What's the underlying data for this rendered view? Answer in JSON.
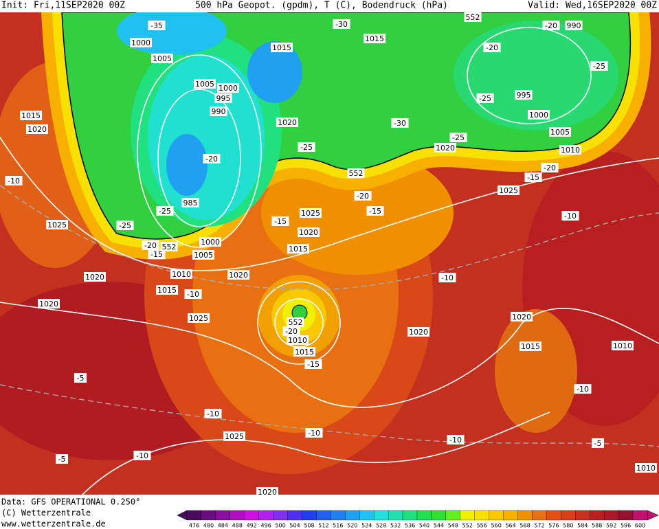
{
  "header": {
    "init": "Init: Fri,11SEP2020 00Z",
    "title": "500 hPa Geopot. (gpdm), T (C), Bodendruck (hPa)",
    "valid": "Valid: Wed,16SEP2020 00Z"
  },
  "footer": {
    "data": "Data: GFS OPERATIONAL 0.250°",
    "copyright": "(C) Wetterzentrale",
    "url": "www.wetterzentrale.de"
  },
  "map": {
    "labels": [
      "-35",
      "1000",
      "1005",
      "1015",
      "1005",
      "1000",
      "995",
      "990",
      "-30",
      "1015",
      "552",
      "-20",
      "990",
      "-20",
      "-25",
      "995",
      "-25",
      "1000",
      "1020",
      "-30",
      "1005",
      "1010",
      "1015",
      "1020",
      "1020",
      "-25",
      "-25",
      "-20",
      "552",
      "-20",
      "-15",
      "-10",
      "1025",
      "-20",
      "985",
      "-25",
      "1025",
      "-15",
      "-15",
      "-10",
      "-25",
      "1025",
      "1020",
      "1000",
      "-20",
      "552",
      "-15",
      "1005",
      "1015",
      "1010",
      "1020",
      "1020",
      "-10",
      "1015",
      "-10",
      "1020",
      "1025",
      "552",
      "1020",
      "-20",
      "1010",
      "1020",
      "1015",
      "1010",
      "1015",
      "-15",
      "-5",
      "-10",
      "-10",
      "1025",
      "-10",
      "-10",
      "-5",
      "-5",
      "-10",
      "1010",
      "1020"
    ],
    "colorbar": {
      "values": [
        476,
        480,
        484,
        488,
        492,
        496,
        500,
        504,
        508,
        512,
        516,
        520,
        524,
        528,
        532,
        536,
        540,
        544,
        548,
        552,
        556,
        560,
        564,
        568,
        572,
        576,
        580,
        584,
        588,
        592,
        596,
        600
      ],
      "colors": [
        "#4b0b5c",
        "#6a0d7e",
        "#8a0fa0",
        "#b00fc0",
        "#d010e0",
        "#b020f0",
        "#8030f0",
        "#5030f0",
        "#2040f0",
        "#2060f0",
        "#2080f0",
        "#20a0f0",
        "#20c0f0",
        "#20e0e0",
        "#20e0b0",
        "#20e080",
        "#20e050",
        "#30e030",
        "#60f020",
        "#f0f000",
        "#f8e000",
        "#f8c800",
        "#f8b000",
        "#f09000",
        "#e87010",
        "#e05010",
        "#d84018",
        "#c83020",
        "#b82020",
        "#a81828",
        "#981030",
        "#c01070"
      ]
    }
  }
}
